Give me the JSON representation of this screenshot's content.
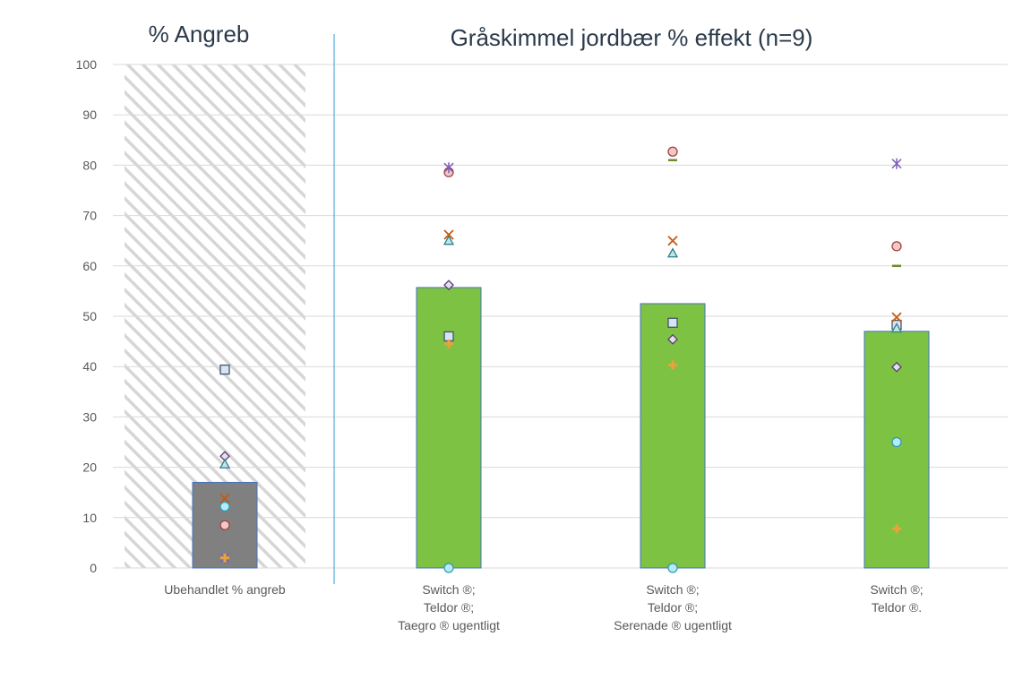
{
  "titles": {
    "left": "% Angreb",
    "right": "Gråskimmel jordbær % effekt (n=9)"
  },
  "chart_data": {
    "type": "bar",
    "ylim": [
      0,
      100
    ],
    "yticks": [
      0,
      10,
      20,
      30,
      40,
      50,
      60,
      70,
      80,
      90,
      100
    ],
    "grid": true,
    "categories": [
      [
        "Ubehandlet % angreb"
      ],
      [
        "Switch ®;",
        "Teldor ®;",
        "Taegro ® ugentligt"
      ],
      [
        "Switch ®;",
        "Teldor ®;",
        "Serenade ® ugentligt"
      ],
      [
        "Switch ®;",
        "Teldor ®."
      ]
    ],
    "bar_values": [
      17,
      55.7,
      52.5,
      47
    ],
    "bar_colors": [
      "#808080",
      "#7dc242",
      "#7dc242",
      "#7dc242"
    ],
    "background_hatched_category": 0,
    "point_series": [
      {
        "marker": "square",
        "color": "#d7e4f5",
        "stroke": "#44546a",
        "values": [
          39.4,
          46,
          48.7,
          48.3
        ]
      },
      {
        "marker": "diamond",
        "color": "#e4dff0",
        "stroke": "#5b3f6e",
        "values": [
          22.2,
          56.2,
          45.4,
          39.9
        ]
      },
      {
        "marker": "triangle",
        "color": "#bfe6e8",
        "stroke": "#2e7f8c",
        "values": [
          20.6,
          65,
          62.5,
          47.6
        ]
      },
      {
        "marker": "x",
        "color": "#c55a11",
        "stroke": "#c55a11",
        "values": [
          13.8,
          66.2,
          65,
          49.8
        ]
      },
      {
        "marker": "circle",
        "color": "#b7eaf2",
        "stroke": "#2e9bb5",
        "values": [
          12.2,
          0,
          0,
          25
        ]
      },
      {
        "marker": "circle",
        "color": "#f2c7c7",
        "stroke": "#a0413f",
        "values": [
          8.5,
          78.6,
          82.7,
          63.9
        ]
      },
      {
        "marker": "asterisk",
        "color": "#7f5fb8",
        "stroke": "#7f5fb8",
        "values": [
          2,
          79.5,
          null,
          80.3
        ]
      },
      {
        "marker": "dash",
        "color": "#6a8b2e",
        "stroke": "#6a8b2e",
        "values": [
          null,
          null,
          81,
          60
        ]
      },
      {
        "marker": "plus",
        "color": "#e8a33c",
        "stroke": "#e8a33c",
        "values": [
          2,
          44.5,
          40.3,
          7.8
        ]
      }
    ],
    "colors": {
      "grid": "#d9d9d9",
      "divider": "#2e9bd6",
      "bar_border": "#4472c4",
      "hatch": "#d6d6d6"
    }
  }
}
